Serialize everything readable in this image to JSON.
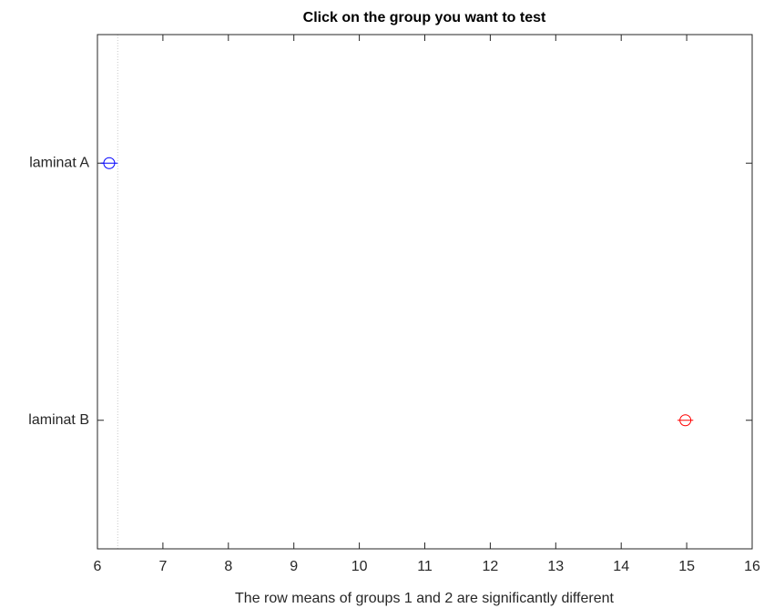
{
  "chart_data": {
    "type": "interval",
    "title": "Click on the group you want to test",
    "xlabel": "The row means of groups 1 and 2 are significantly different",
    "categories": [
      "laminat A",
      "laminat B"
    ],
    "values": [
      6.18,
      14.98
    ],
    "errors": [
      0.13,
      0.12
    ],
    "colors": [
      "#0000ff",
      "#ff0000"
    ],
    "reference_lines": [
      6.31
    ],
    "xlim": [
      6,
      16
    ],
    "xticks": [
      6,
      7,
      8,
      9,
      10,
      11,
      12,
      13,
      14,
      15,
      16
    ],
    "ylim": [
      0.5,
      2.5
    ]
  }
}
